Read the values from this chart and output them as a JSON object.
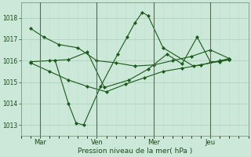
{
  "background_color": "#cce8d8",
  "grid_color_major": "#aaceba",
  "grid_color_minor": "#c0deca",
  "line_color": "#1a5a1a",
  "marker_color": "#1a5a1a",
  "xlabel": "Pression niveau de la mer( hPa )",
  "ylim": [
    1012.5,
    1018.7
  ],
  "yticks": [
    1013,
    1014,
    1015,
    1016,
    1017,
    1018
  ],
  "xtick_labels": [
    "Mar",
    "Ven",
    "Mer",
    "Jeu"
  ],
  "xtick_positions": [
    0.5,
    3.5,
    6.5,
    9.5
  ],
  "vline_positions": [
    0.5,
    3.5,
    6.5,
    9.5
  ],
  "xlim": [
    -0.5,
    11.5
  ],
  "series_x": [
    [
      0.0,
      0.7,
      1.5,
      2.5,
      3.5,
      4.5,
      5.5,
      6.5,
      7.5,
      8.5,
      9.5,
      10.5
    ],
    [
      1.3,
      2.0,
      2.4,
      2.8,
      3.7,
      4.6,
      5.1,
      5.5,
      5.9,
      6.2,
      7.0,
      8.6,
      10.5
    ],
    [
      0.0,
      1.0,
      2.0,
      3.0,
      4.0,
      5.0,
      6.0,
      7.0,
      8.0,
      9.0,
      10.0,
      10.5
    ],
    [
      0.0,
      1.0,
      2.0,
      3.0,
      3.9,
      5.2,
      6.2,
      7.2,
      8.0,
      8.8,
      9.5,
      10.0,
      10.5
    ]
  ],
  "series_y": [
    [
      1017.5,
      1017.1,
      1016.75,
      1016.6,
      1016.0,
      1015.9,
      1015.75,
      1015.8,
      1016.0,
      1016.2,
      1016.5,
      1016.1
    ],
    [
      1016.0,
      1014.0,
      1013.1,
      1013.0,
      1014.8,
      1016.3,
      1017.1,
      1017.75,
      1018.25,
      1018.1,
      1016.6,
      1015.75,
      1016.05
    ],
    [
      1015.9,
      1015.5,
      1015.1,
      1014.8,
      1014.55,
      1014.9,
      1015.2,
      1015.5,
      1015.65,
      1015.8,
      1016.0,
      1016.1
    ],
    [
      1015.95,
      1016.0,
      1016.05,
      1016.4,
      1014.75,
      1015.1,
      1015.6,
      1016.3,
      1015.85,
      1017.1,
      1015.95,
      1015.95,
      1016.05
    ]
  ],
  "figsize": [
    3.2,
    2.0
  ],
  "dpi": 100
}
